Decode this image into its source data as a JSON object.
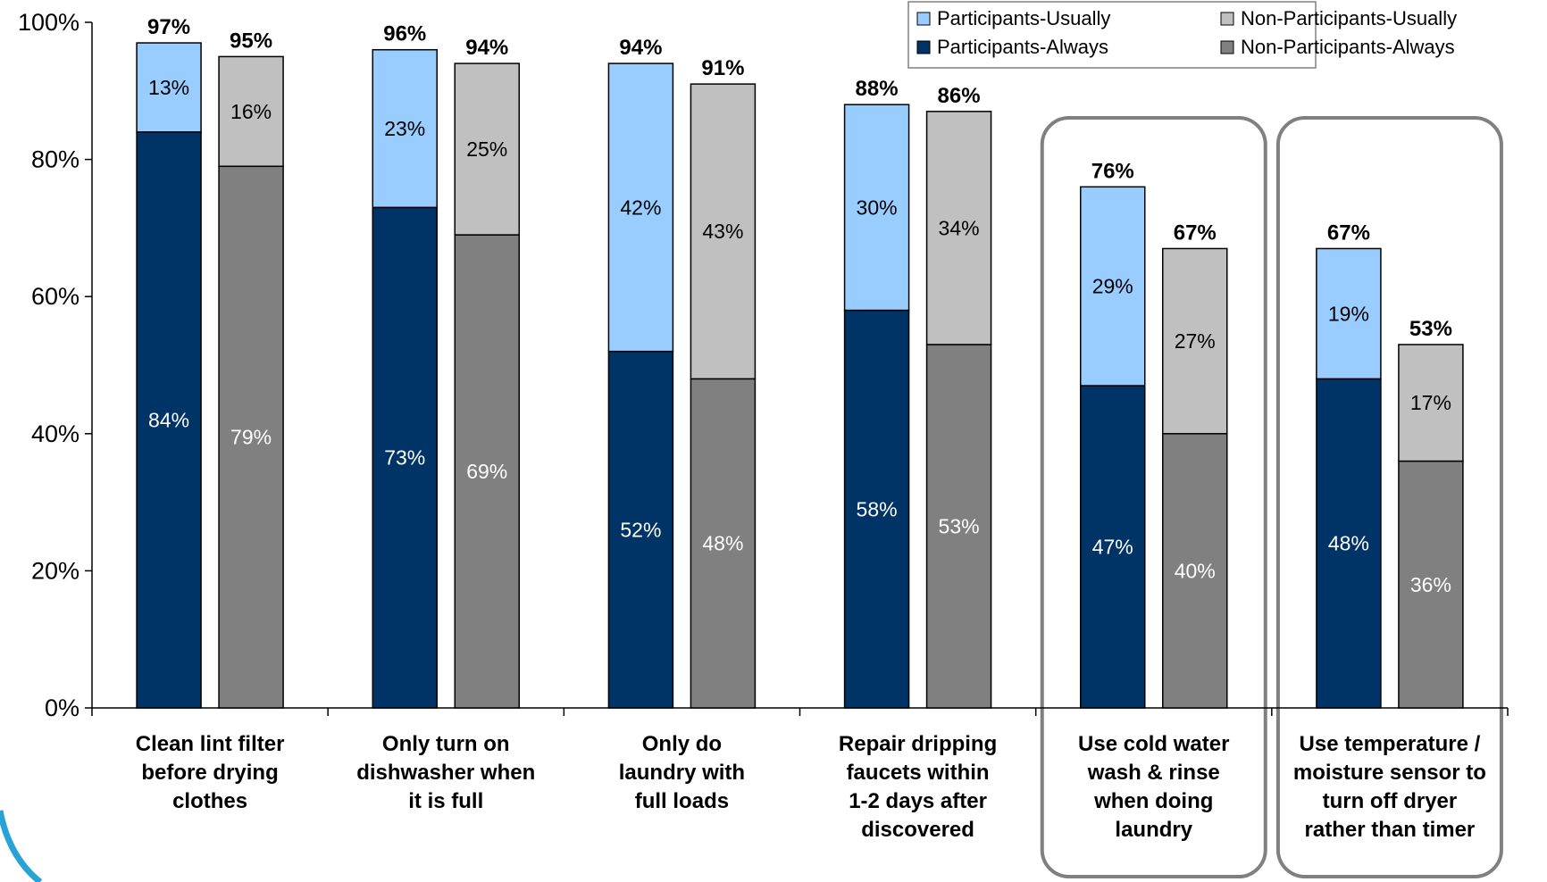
{
  "chart_data": {
    "type": "bar",
    "stacked": true,
    "title": "",
    "xlabel": "",
    "ylabel": "",
    "ylim": [
      0,
      100
    ],
    "y_ticks": [
      "0%",
      "20%",
      "40%",
      "60%",
      "80%",
      "100%"
    ],
    "grid": false,
    "legend_position": "top-right",
    "categories": [
      [
        "Clean lint filter",
        "before drying",
        "clothes"
      ],
      [
        "Only turn on",
        "dishwasher when",
        "it is full"
      ],
      [
        "Only do",
        "laundry with",
        "full loads"
      ],
      [
        "Repair dripping",
        "faucets within",
        "1-2 days after",
        "discovered"
      ],
      [
        "Use cold water",
        "wash & rinse",
        "when doing",
        "laundry"
      ],
      [
        "Use temperature /",
        "moisture sensor to",
        "turn off dryer",
        "rather than timer"
      ]
    ],
    "highlighted_categories": [
      4,
      5
    ],
    "series": [
      {
        "name": "Participants-Always",
        "group": "Participants",
        "color": "#003366",
        "label_color": "#ffffff",
        "values": [
          84,
          73,
          52,
          58,
          47,
          48
        ],
        "labels": [
          "84%",
          "73%",
          "52%",
          "58%",
          "47%",
          "48%"
        ]
      },
      {
        "name": "Participants-Usually",
        "group": "Participants",
        "color": "#99ccff",
        "label_color": "#000000",
        "values": [
          13,
          23,
          42,
          30,
          29,
          19
        ],
        "labels": [
          "13%",
          "23%",
          "42%",
          "30%",
          "29%",
          "19%"
        ]
      },
      {
        "name": "Non-Participants-Always",
        "group": "Non-Participants",
        "color": "#808080",
        "label_color": "#ffffff",
        "values": [
          79,
          69,
          48,
          53,
          40,
          36
        ],
        "labels": [
          "79%",
          "69%",
          "48%",
          "53%",
          "40%",
          "36%"
        ]
      },
      {
        "name": "Non-Participants-Usually",
        "group": "Non-Participants",
        "color": "#c0c0c0",
        "label_color": "#000000",
        "values": [
          16,
          25,
          43,
          34,
          27,
          17
        ],
        "labels": [
          "16%",
          "25%",
          "43%",
          "34%",
          "27%",
          "17%"
        ]
      }
    ],
    "totals": {
      "Participants": [
        "97%",
        "96%",
        "94%",
        "88%",
        "76%",
        "67%"
      ],
      "Non-Participants": [
        "95%",
        "94%",
        "91%",
        "86%",
        "67%",
        "53%"
      ]
    },
    "legend": [
      {
        "name": "Participants-Usually",
        "color": "#99ccff"
      },
      {
        "name": "Non-Participants-Usually",
        "color": "#c0c0c0"
      },
      {
        "name": "Participants-Always",
        "color": "#003366"
      },
      {
        "name": "Non-Participants-Always",
        "color": "#808080"
      }
    ],
    "colors": {
      "accent_arc": "#29a3d6",
      "highlight_border": "#808080"
    }
  }
}
